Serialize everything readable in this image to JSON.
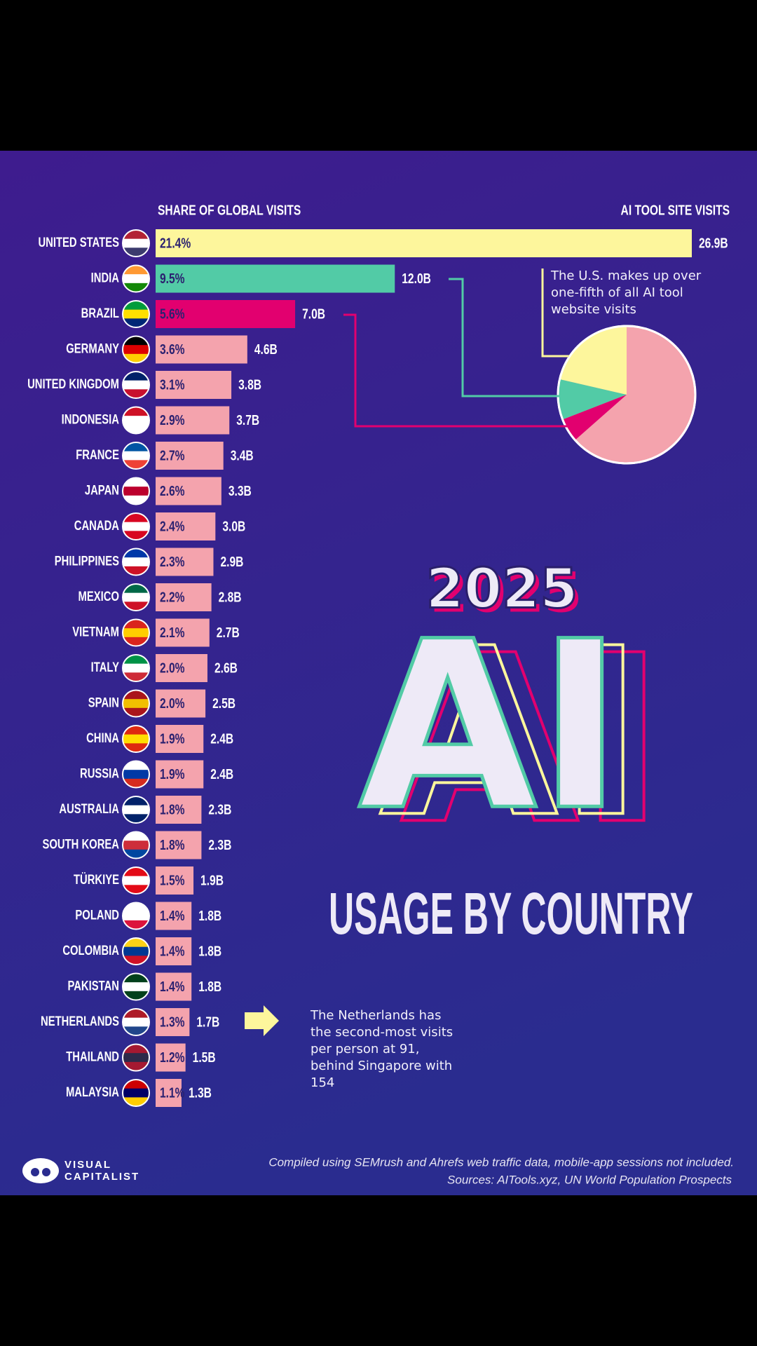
{
  "chart_data": {
    "type": "bar",
    "title_year": "2025",
    "title_main": "AI",
    "title": "USAGE BY COUNTRY",
    "share_header": "SHARE OF GLOBAL VISITS",
    "visits_header": "AI TOOL SITE VISITS",
    "categories": [
      "UNITED STATES",
      "INDIA",
      "BRAZIL",
      "GERMANY",
      "UNITED KINGDOM",
      "INDONESIA",
      "FRANCE",
      "JAPAN",
      "CANADA",
      "PHILIPPINES",
      "MEXICO",
      "VIETNAM",
      "ITALY",
      "SPAIN",
      "CHINA",
      "RUSSIA",
      "AUSTRALIA",
      "SOUTH KOREA",
      "TÜRKIYE",
      "POLAND",
      "COLOMBIA",
      "PAKISTAN",
      "NETHERLANDS",
      "THAILAND",
      "MALAYSIA"
    ],
    "series": [
      {
        "name": "Share of global visits",
        "values": [
          21.4,
          9.5,
          5.6,
          3.6,
          3.1,
          2.9,
          2.7,
          2.6,
          2.4,
          2.3,
          2.2,
          2.1,
          2.0,
          2.0,
          1.9,
          1.9,
          1.8,
          1.8,
          1.5,
          1.4,
          1.4,
          1.4,
          1.3,
          1.2,
          1.1
        ],
        "value_labels": [
          "21.4%",
          "9.5%",
          "5.6%",
          "3.6%",
          "3.1%",
          "2.9%",
          "2.7%",
          "2.6%",
          "2.4%",
          "2.3%",
          "2.2%",
          "2.1%",
          "2.0%",
          "2.0%",
          "1.9%",
          "1.9%",
          "1.8%",
          "1.8%",
          "1.5%",
          "1.4%",
          "1.4%",
          "1.4%",
          "1.3%",
          "1.2%",
          "1.1%"
        ]
      },
      {
        "name": "AI tool site visits",
        "values": [
          26.9,
          12.0,
          7.0,
          4.6,
          3.8,
          3.7,
          3.4,
          3.3,
          3.0,
          2.9,
          2.8,
          2.7,
          2.6,
          2.5,
          2.4,
          2.4,
          2.3,
          2.3,
          1.9,
          1.8,
          1.8,
          1.8,
          1.7,
          1.5,
          1.3
        ],
        "value_labels": [
          "26.9B",
          "12.0B",
          "7.0B",
          "4.6B",
          "3.8B",
          "3.7B",
          "3.4B",
          "3.3B",
          "3.0B",
          "2.9B",
          "2.8B",
          "2.7B",
          "2.6B",
          "2.5B",
          "2.4B",
          "2.4B",
          "2.3B",
          "2.3B",
          "1.9B",
          "1.8B",
          "1.8B",
          "1.8B",
          "1.7B",
          "1.5B",
          "1.3B"
        ]
      }
    ],
    "color": "#f4a3ad",
    "highlight_colors": [
      "#fdf69c",
      "#52cba6",
      "#e2006f"
    ],
    "annotations": [
      "The U.S. makes up over one-fifth of all AI tool website visits",
      "The Netherlands has the second-most visits per person at 91, behind Singapore with 154"
    ],
    "brand": [
      "VISUAL",
      "CAPITALIST"
    ],
    "footnote": "Compiled using SEMrush and Ahrefs web traffic data, mobile-app sessions not included.",
    "sources": "Sources: AITools.xyz, UN World Population Prospects"
  }
}
